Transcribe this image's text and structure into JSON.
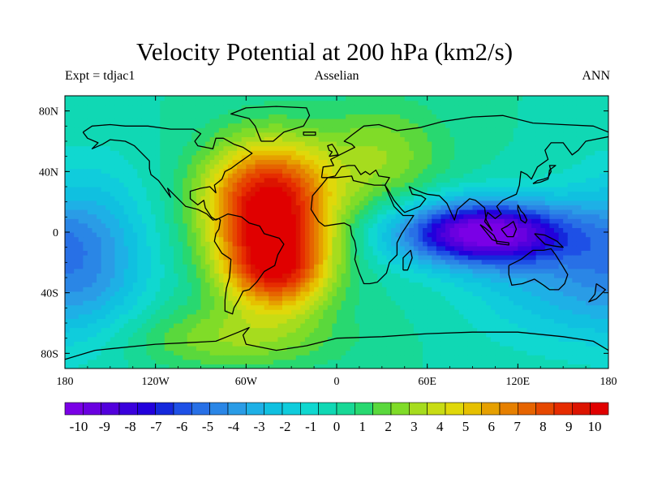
{
  "header": {
    "title": "Velocity Potential at 200 hPa (km2/s)",
    "left_label": "Expt = tdjac1",
    "center_label": "Asselian",
    "right_label": "ANN"
  },
  "map": {
    "lon_range": [
      -180,
      180
    ],
    "lat_range": [
      -90,
      90
    ],
    "x_ticks": [
      {
        "value": -180,
        "label": "180"
      },
      {
        "value": -120,
        "label": "120W"
      },
      {
        "value": -60,
        "label": "60W"
      },
      {
        "value": 0,
        "label": "0"
      },
      {
        "value": 60,
        "label": "60E"
      },
      {
        "value": 120,
        "label": "120E"
      },
      {
        "value": 180,
        "label": "180"
      }
    ],
    "y_ticks": [
      {
        "value": 80,
        "label": "80N"
      },
      {
        "value": 40,
        "label": "40N"
      },
      {
        "value": 0,
        "label": "0"
      },
      {
        "value": -40,
        "label": "40S"
      },
      {
        "value": -80,
        "label": "80S"
      }
    ],
    "field_centers": [
      {
        "lon": -45,
        "lat": 20,
        "amplitude": 9.8,
        "lon_width": 30,
        "lat_width": 28
      },
      {
        "lon": -40,
        "lat": -25,
        "amplitude": 7.5,
        "lon_width": 25,
        "lat_width": 20
      },
      {
        "lon": 95,
        "lat": 0,
        "amplitude": -9.5,
        "lon_width": 40,
        "lat_width": 15
      },
      {
        "lon": 140,
        "lat": -30,
        "amplitude": -2.5,
        "lon_width": 40,
        "lat_width": 30
      },
      {
        "lon": -165,
        "lat": -15,
        "amplitude": -3.5,
        "lon_width": 30,
        "lat_width": 40
      },
      {
        "lon": 30,
        "lat": 50,
        "amplitude": 2.5,
        "lon_width": 30,
        "lat_width": 25
      },
      {
        "lon": -70,
        "lat": -70,
        "amplitude": 2.5,
        "lon_width": 50,
        "lat_width": 15
      }
    ]
  },
  "colorbar": {
    "colors": [
      "#7a00e6",
      "#6a00e0",
      "#5200dc",
      "#3a00dc",
      "#2200dc",
      "#1428dc",
      "#1e50e6",
      "#2870e6",
      "#2a86e6",
      "#2a9ce6",
      "#1eb0e6",
      "#10c0e0",
      "#10ccdc",
      "#10d8d0",
      "#10d8b4",
      "#18d896",
      "#28d870",
      "#5ad83c",
      "#80dc28",
      "#a6dc1e",
      "#c8dc14",
      "#e0d80a",
      "#e6c000",
      "#e6a000",
      "#e68000",
      "#e66400",
      "#e64800",
      "#e62c00",
      "#dc1400",
      "#e00000"
    ],
    "labels": [
      "-10",
      "-9",
      "-8",
      "-7",
      "-6",
      "-5",
      "-4",
      "-3",
      "-2",
      "-1",
      "0",
      "1",
      "2",
      "3",
      "4",
      "5",
      "6",
      "7",
      "8",
      "9",
      "10"
    ],
    "value_range": [
      -10,
      10
    ]
  }
}
